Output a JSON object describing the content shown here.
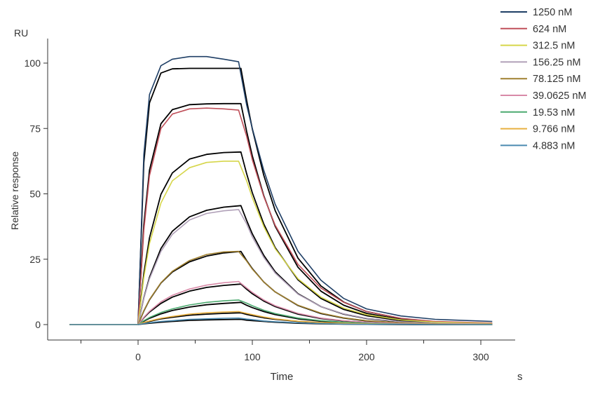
{
  "chart_data": {
    "type": "line",
    "title": "",
    "unit_label": "RU",
    "ylabel": "Relative response",
    "xlabel": "Time",
    "x_unit": "s",
    "xlim": [
      -60,
      310
    ],
    "ylim": [
      0,
      100
    ],
    "x_ticks": [
      0,
      100,
      200,
      300
    ],
    "x_minor_ticks": [
      -50,
      50,
      150,
      250
    ],
    "y_ticks": [
      0,
      25,
      50,
      75,
      100
    ],
    "grid": false,
    "legend_position": "top-right",
    "fit_color": "#000000",
    "t_data": [
      -60,
      0,
      5,
      10,
      20,
      30,
      45,
      60,
      75,
      88,
      95,
      100,
      110,
      120,
      140,
      160,
      180,
      200,
      230,
      260,
      310
    ],
    "t_fit": [
      -60,
      0,
      5,
      10,
      20,
      30,
      45,
      60,
      75,
      90,
      95,
      100,
      110,
      120,
      140,
      160,
      180,
      200,
      230,
      260,
      310
    ],
    "series": [
      {
        "name": "1250 nM",
        "color": "#1f3f66",
        "data": [
          0,
          0,
          65,
          88,
          99,
          101.5,
          102.5,
          102.5,
          101.5,
          100.5,
          84,
          75,
          59,
          46,
          28,
          17,
          10,
          6,
          3.3,
          2,
          1.2
        ],
        "fit": [
          0,
          0,
          61.9,
          84.8,
          96.2,
          97.8,
          98,
          98,
          98,
          98,
          85.7,
          74.8,
          57.1,
          43.6,
          25.4,
          14.8,
          8.6,
          5.0,
          2.3,
          1.0,
          0.3
        ]
      },
      {
        "name": "624 nM",
        "color": "#c0505a",
        "data": [
          0,
          0,
          36,
          57,
          75,
          80.5,
          82.5,
          82.8,
          82.5,
          82,
          72,
          63,
          49,
          38,
          23,
          14,
          8.5,
          5,
          2.4,
          1.2,
          0.6
        ],
        "fit": [
          0,
          0,
          38.1,
          59.1,
          76.8,
          82.2,
          84.1,
          84.4,
          84.5,
          84.5,
          73.9,
          64.5,
          49.3,
          37.6,
          21.9,
          12.8,
          7.4,
          4.3,
          1.9,
          0.8,
          0.2
        ]
      },
      {
        "name": "312.5 nM",
        "color": "#d6d64a",
        "data": [
          0,
          0,
          18,
          31,
          46.5,
          55,
          60,
          62,
          62.5,
          62.5,
          55,
          48.5,
          37.5,
          29,
          17.5,
          10.5,
          6.3,
          3.8,
          1.8,
          0.9,
          0.4
        ],
        "fit": [
          0,
          0,
          19.5,
          33.2,
          49.8,
          58.0,
          63.3,
          65.1,
          65.8,
          66.0,
          57.7,
          50.4,
          38.5,
          29.4,
          17.1,
          10.0,
          5.8,
          3.4,
          1.5,
          0.7,
          0.2
        ]
      },
      {
        "name": "156.25 nM",
        "color": "#b0a0b8",
        "data": [
          0,
          0,
          10,
          17.5,
          28,
          34.5,
          40,
          42.5,
          43.5,
          44,
          38.5,
          33.5,
          25.7,
          19.7,
          11.6,
          6.9,
          4.1,
          2.4,
          1.1,
          0.5,
          0.2
        ],
        "fit": [
          0,
          0,
          10.2,
          18.1,
          29.1,
          35.7,
          41.2,
          43.7,
          44.9,
          45.5,
          39.8,
          34.7,
          26.5,
          20.2,
          11.8,
          6.9,
          4.0,
          2.3,
          1.0,
          0.5,
          0.1
        ]
      },
      {
        "name": "78.125 nM",
        "color": "#a08030",
        "data": [
          0,
          0,
          5.3,
          9.6,
          16,
          20.4,
          24.5,
          26.8,
          27.8,
          28,
          24.3,
          21.2,
          16.3,
          12.5,
          7.4,
          4.4,
          2.6,
          1.5,
          0.7,
          0.3,
          0.1
        ],
        "fit": [
          0,
          0,
          5.2,
          9.5,
          15.9,
          20.1,
          24.0,
          26.2,
          27.4,
          28.0,
          24.5,
          21.4,
          16.3,
          12.5,
          7.3,
          4.2,
          2.5,
          1.4,
          0.6,
          0.3,
          0.1
        ]
      },
      {
        "name": "39.0625 nM",
        "color": "#d88aa8",
        "data": [
          0,
          0,
          2.8,
          5.1,
          8.7,
          11.2,
          13.6,
          15.1,
          16,
          16.5,
          14,
          12.3,
          9.4,
          7.2,
          4.3,
          2.5,
          1.5,
          0.9,
          0.4,
          0.2,
          0.1
        ],
        "fit": [
          0,
          0,
          2.6,
          4.8,
          8.1,
          10.5,
          12.8,
          14.2,
          15.0,
          15.5,
          13.5,
          11.8,
          9.0,
          6.9,
          4.0,
          2.3,
          1.4,
          0.8,
          0.4,
          0.2,
          0.0
        ]
      },
      {
        "name": "19.53 nM",
        "color": "#4caa70",
        "data": [
          0,
          0,
          1.5,
          2.7,
          4.6,
          6,
          7.5,
          8.5,
          9.1,
          9.4,
          8.2,
          7.2,
          5.5,
          4.2,
          2.5,
          1.5,
          0.9,
          0.5,
          0.2,
          0.1,
          0
        ],
        "fit": [
          0,
          0,
          1.3,
          2.4,
          4.1,
          5.4,
          6.7,
          7.6,
          8.1,
          8.5,
          7.4,
          6.5,
          5.0,
          3.8,
          2.2,
          1.3,
          0.7,
          0.4,
          0.2,
          0.1,
          0
        ]
      },
      {
        "name": "9.766 nM",
        "color": "#e8b040",
        "data": [
          0,
          0,
          0.8,
          1.4,
          2.4,
          3.1,
          4,
          4.5,
          4.8,
          5,
          4.3,
          3.8,
          2.9,
          2.2,
          1.3,
          0.8,
          0.5,
          0.3,
          0.1,
          0.1,
          0
        ],
        "fit": [
          0,
          0,
          0.7,
          1.2,
          2.2,
          2.8,
          3.6,
          4.0,
          4.3,
          4.5,
          3.9,
          3.4,
          2.6,
          2.0,
          1.2,
          0.7,
          0.4,
          0.2,
          0.1,
          0,
          0
        ]
      },
      {
        "name": "4.883 nM",
        "color": "#4a8ab0",
        "data": [
          0,
          0,
          0.4,
          0.7,
          1.2,
          1.5,
          2,
          2.2,
          2.4,
          2.5,
          2.1,
          1.9,
          1.4,
          1.1,
          0.7,
          0.4,
          0.2,
          0.1,
          0.1,
          0,
          0
        ],
        "fit": [
          0,
          0,
          0.3,
          0.5,
          0.9,
          1.2,
          1.6,
          1.8,
          1.9,
          2.0,
          1.7,
          1.5,
          1.2,
          0.9,
          0.5,
          0.3,
          0.2,
          0.1,
          0,
          0,
          0
        ]
      }
    ]
  }
}
